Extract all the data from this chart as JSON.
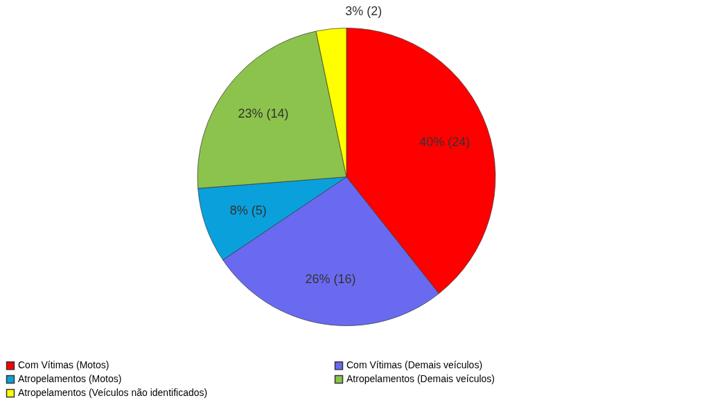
{
  "chart_data": {
    "type": "pie",
    "categories": [
      "Com Vítimas (Motos)",
      "Com Vítimas (Demais veículos)",
      "Atropelamentos (Motos)",
      "Atropelamentos (Demais veículos)",
      "Atropelamentos (Veículos não identificados)"
    ],
    "values": [
      24,
      16,
      5,
      14,
      2
    ],
    "colors": [
      "#ff0000",
      "#6a6af0",
      "#0aa0dc",
      "#8cc34c",
      "#ffff00"
    ],
    "value_labels": [
      "40% (24)",
      "26% (16)",
      "8% (5)",
      "23% (14)",
      "3% (2)"
    ],
    "legend": "bottom"
  }
}
